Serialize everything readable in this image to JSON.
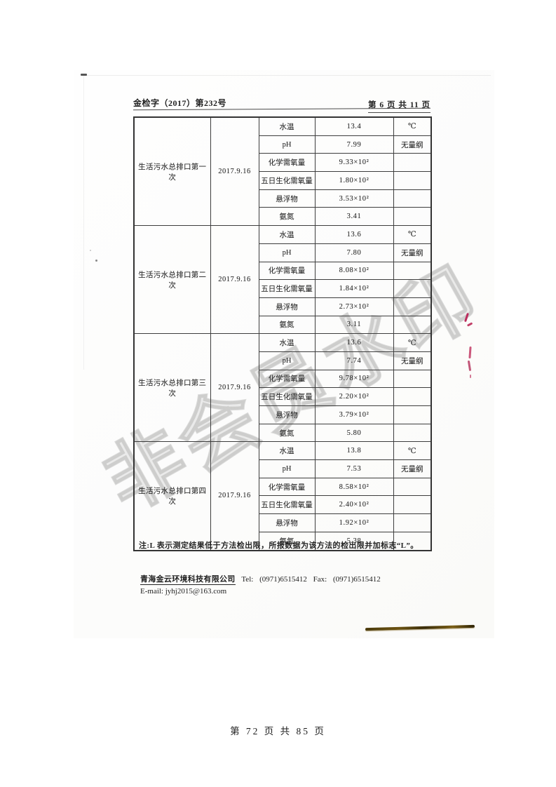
{
  "header": {
    "doc_number": "金检字（2017）第232号",
    "page_indicator": "第 6 页 共 11 页"
  },
  "table": {
    "sections": [
      {
        "name": "生活污水总排口第一次",
        "date": "2017.9.16",
        "rows": [
          {
            "param": "水温",
            "value": "13.4",
            "unit": "℃"
          },
          {
            "param": "pH",
            "value": "7.99",
            "unit": "无量纲"
          },
          {
            "param": "化学需氧量",
            "value": "9.33×10²",
            "unit": ""
          },
          {
            "param": "五日生化需氧量",
            "value": "1.80×10²",
            "unit": ""
          },
          {
            "param": "悬浮物",
            "value": "3.53×10²",
            "unit": ""
          },
          {
            "param": "氨氮",
            "value": "3.41",
            "unit": ""
          }
        ]
      },
      {
        "name": "生活污水总排口第二次",
        "date": "2017.9.16",
        "rows": [
          {
            "param": "水温",
            "value": "13.6",
            "unit": "℃"
          },
          {
            "param": "pH",
            "value": "7.80",
            "unit": "无量纲"
          },
          {
            "param": "化学需氧量",
            "value": "8.08×10²",
            "unit": ""
          },
          {
            "param": "五日生化需氧量",
            "value": "1.84×10²",
            "unit": ""
          },
          {
            "param": "悬浮物",
            "value": "2.73×10²",
            "unit": ""
          },
          {
            "param": "氨氮",
            "value": "3.11",
            "unit": ""
          }
        ]
      },
      {
        "name": "生活污水总排口第三次",
        "date": "2017.9.16",
        "rows": [
          {
            "param": "水温",
            "value": "13.6",
            "unit": "℃"
          },
          {
            "param": "pH",
            "value": "7.74",
            "unit": "无量纲"
          },
          {
            "param": "化学需氧量",
            "value": "9.78×10²",
            "unit": ""
          },
          {
            "param": "五日生化需氧量",
            "value": "2.20×10²",
            "unit": ""
          },
          {
            "param": "悬浮物",
            "value": "3.79×10²",
            "unit": ""
          },
          {
            "param": "氨氮",
            "value": "5.80",
            "unit": ""
          }
        ]
      },
      {
        "name": "生活污水总排口第四次",
        "date": "2017.9.16",
        "rows": [
          {
            "param": "水温",
            "value": "13.8",
            "unit": "℃"
          },
          {
            "param": "pH",
            "value": "7.53",
            "unit": "无量纲"
          },
          {
            "param": "化学需氧量",
            "value": "8.58×10²",
            "unit": ""
          },
          {
            "param": "五日生化需氧量",
            "value": "2.40×10²",
            "unit": ""
          },
          {
            "param": "悬浮物",
            "value": "1.92×10²",
            "unit": ""
          },
          {
            "param": "氨氮",
            "value": "5.38",
            "unit": ""
          }
        ]
      }
    ]
  },
  "note": "注:L 表示测定结果低于方法检出限，所报数据为该方法的检出限并加标志“L”。",
  "contact": {
    "company": "青海金云环境科技有限公司",
    "tel_label": "Tel:",
    "tel": "(0971)6515412",
    "fax_label": "Fax:",
    "fax": "(0971)6515412",
    "email_label": "E-mail:",
    "email": "jyhj2015@163.com"
  },
  "watermark": {
    "text": "非会员水印",
    "color": "#8c8c8c"
  },
  "page_footer": "第 72 页 共 85 页",
  "artifacts": {
    "red_marks_color": "#bb2c5c",
    "scan_hair_color": "#4a3a0c"
  }
}
